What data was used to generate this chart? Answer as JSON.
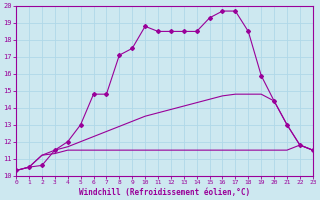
{
  "xlabel": "Windchill (Refroidissement éolien,°C)",
  "bg_color": "#cde8f0",
  "grid_color": "#b0d8e8",
  "line_color": "#990099",
  "xmin": 0,
  "xmax": 23,
  "ymin": 10,
  "ymax": 20,
  "xticks": [
    0,
    1,
    2,
    3,
    4,
    5,
    6,
    7,
    8,
    9,
    10,
    11,
    12,
    13,
    14,
    15,
    16,
    17,
    18,
    19,
    20,
    21,
    22,
    23
  ],
  "yticks": [
    10,
    11,
    12,
    13,
    14,
    15,
    16,
    17,
    18,
    19,
    20
  ],
  "series1_x": [
    0,
    1,
    2,
    3,
    4,
    5,
    6,
    7,
    8,
    9,
    10,
    11,
    12,
    13,
    14,
    15,
    16,
    17,
    18,
    19,
    20,
    21,
    22,
    23
  ],
  "series1_y": [
    10.3,
    10.5,
    10.6,
    11.5,
    12.0,
    13.0,
    14.8,
    14.8,
    17.1,
    17.5,
    18.8,
    18.5,
    18.5,
    18.5,
    18.5,
    19.3,
    19.7,
    19.7,
    18.5,
    15.9,
    14.4,
    13.0,
    11.8,
    11.5
  ],
  "series2_x": [
    0,
    1,
    2,
    3,
    4,
    5,
    6,
    7,
    8,
    9,
    10,
    11,
    12,
    13,
    14,
    15,
    16,
    17,
    18,
    19,
    20,
    21,
    22,
    23
  ],
  "series2_y": [
    10.3,
    10.5,
    11.2,
    11.3,
    11.5,
    11.5,
    11.5,
    11.5,
    11.5,
    11.5,
    11.5,
    11.5,
    11.5,
    11.5,
    11.5,
    11.5,
    11.5,
    11.5,
    11.5,
    11.5,
    11.5,
    11.5,
    11.8,
    11.5
  ],
  "series3_x": [
    0,
    1,
    2,
    3,
    4,
    5,
    6,
    7,
    8,
    9,
    10,
    11,
    12,
    13,
    14,
    15,
    16,
    17,
    18,
    19,
    20,
    21,
    22,
    23
  ],
  "series3_y": [
    10.3,
    10.5,
    11.2,
    11.5,
    11.7,
    12.0,
    12.3,
    12.6,
    12.9,
    13.2,
    13.5,
    13.7,
    13.9,
    14.1,
    14.3,
    14.5,
    14.7,
    14.8,
    14.8,
    14.8,
    14.4,
    13.0,
    11.8,
    11.5
  ],
  "marker_size": 2.0,
  "line_width": 0.8
}
